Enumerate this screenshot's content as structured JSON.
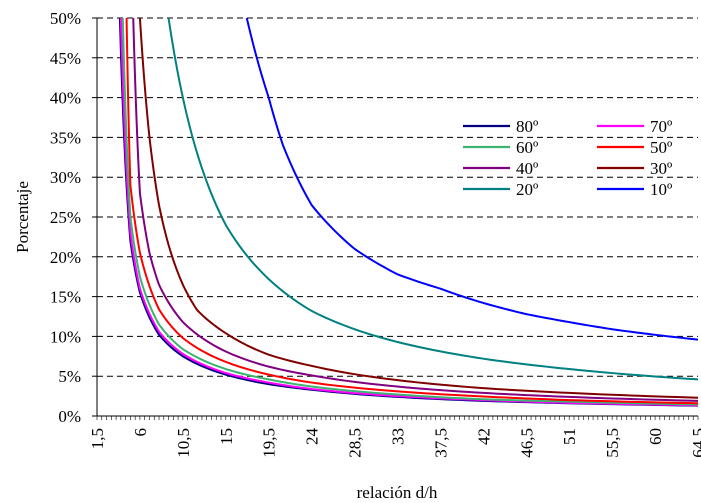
{
  "chart_data": {
    "type": "line",
    "title": "",
    "xlabel": "relación d/h",
    "ylabel": "Porcentaje",
    "xlim": [
      1.5,
      64.5
    ],
    "ylim": [
      0,
      50
    ],
    "y_ticks": [
      "0%",
      "5%",
      "10%",
      "15%",
      "20%",
      "25%",
      "30%",
      "35%",
      "40%",
      "45%",
      "50%"
    ],
    "x_ticks": [
      "1,5",
      "6",
      "10,5",
      "15",
      "19,5",
      "24",
      "28,5",
      "33",
      "37,5",
      "42",
      "46,5",
      "51",
      "55,5",
      "60",
      "64,5"
    ],
    "x_tick_values": [
      1.5,
      6,
      10.5,
      15,
      19.5,
      24,
      28.5,
      33,
      37.5,
      42,
      46.5,
      51,
      55.5,
      60,
      64.5
    ],
    "grid": "horizontal dashed",
    "legend_position": "right",
    "series": [
      {
        "name": "80º",
        "color": "#000080",
        "x": [
          3.9,
          5,
          6,
          8,
          10.5,
          15,
          19.5,
          24,
          33,
          42,
          51,
          64.5
        ],
        "y": [
          50,
          22,
          15.5,
          10.2,
          7.5,
          5.2,
          4.0,
          3.3,
          2.4,
          1.9,
          1.6,
          1.3
        ]
      },
      {
        "name": "70º",
        "color": "#ff00ff",
        "x": [
          4.0,
          5,
          6,
          8,
          10.5,
          15,
          19.5,
          24,
          33,
          42,
          51,
          64.5
        ],
        "y": [
          50,
          23,
          16,
          10.6,
          7.8,
          5.4,
          4.2,
          3.4,
          2.5,
          2.0,
          1.65,
          1.35
        ]
      },
      {
        "name": "60º",
        "color": "#3cb371",
        "x": [
          4.2,
          5,
          6,
          8,
          10.5,
          15,
          19.5,
          24,
          33,
          42,
          51,
          64.5
        ],
        "y": [
          50,
          25,
          17.5,
          11.5,
          8.4,
          5.9,
          4.6,
          3.7,
          2.7,
          2.1,
          1.8,
          1.45
        ]
      },
      {
        "name": "50º",
        "color": "#ff0000",
        "x": [
          4.6,
          5,
          6,
          8,
          10.5,
          15,
          19.5,
          24,
          33,
          42,
          51,
          64.5
        ],
        "y": [
          50,
          29,
          20.5,
          13.4,
          9.8,
          6.8,
          5.2,
          4.2,
          3.1,
          2.45,
          2.0,
          1.6
        ]
      },
      {
        "name": "40º",
        "color": "#800080",
        "x": [
          5.3,
          6,
          7,
          8,
          10.5,
          15,
          19.5,
          24,
          33,
          42,
          51,
          64.5
        ],
        "y": [
          50,
          28,
          20.5,
          16.5,
          11.8,
          8.1,
          6.2,
          5.1,
          3.7,
          2.9,
          2.4,
          1.9
        ]
      },
      {
        "name": "30º",
        "color": "#800000",
        "x": [
          6.0,
          7,
          8,
          9,
          10.5,
          12,
          15,
          19.5,
          24,
          33,
          42,
          51,
          64.5
        ],
        "y": [
          50,
          35,
          26.5,
          21.5,
          16.5,
          13.3,
          10.4,
          7.7,
          6.3,
          4.5,
          3.5,
          2.9,
          2.3
        ]
      },
      {
        "name": "20º",
        "color": "#008080",
        "x": [
          9.0,
          10.5,
          12,
          15,
          19.5,
          24,
          28.5,
          33,
          42,
          51,
          64.5
        ],
        "y": [
          50,
          40,
          33,
          24,
          17.2,
          13.2,
          10.9,
          9.3,
          7.2,
          5.9,
          4.6
        ]
      },
      {
        "name": "10º",
        "color": "#0000ff",
        "x": [
          17.2,
          19.5,
          21,
          24,
          28.5,
          33,
          37.5,
          42,
          46.5,
          51,
          55.5,
          60,
          64.5
        ],
        "y": [
          50,
          40,
          34,
          26.5,
          21,
          17.8,
          16,
          14.2,
          12.8,
          11.8,
          10.9,
          10.2,
          9.6
        ]
      }
    ]
  }
}
